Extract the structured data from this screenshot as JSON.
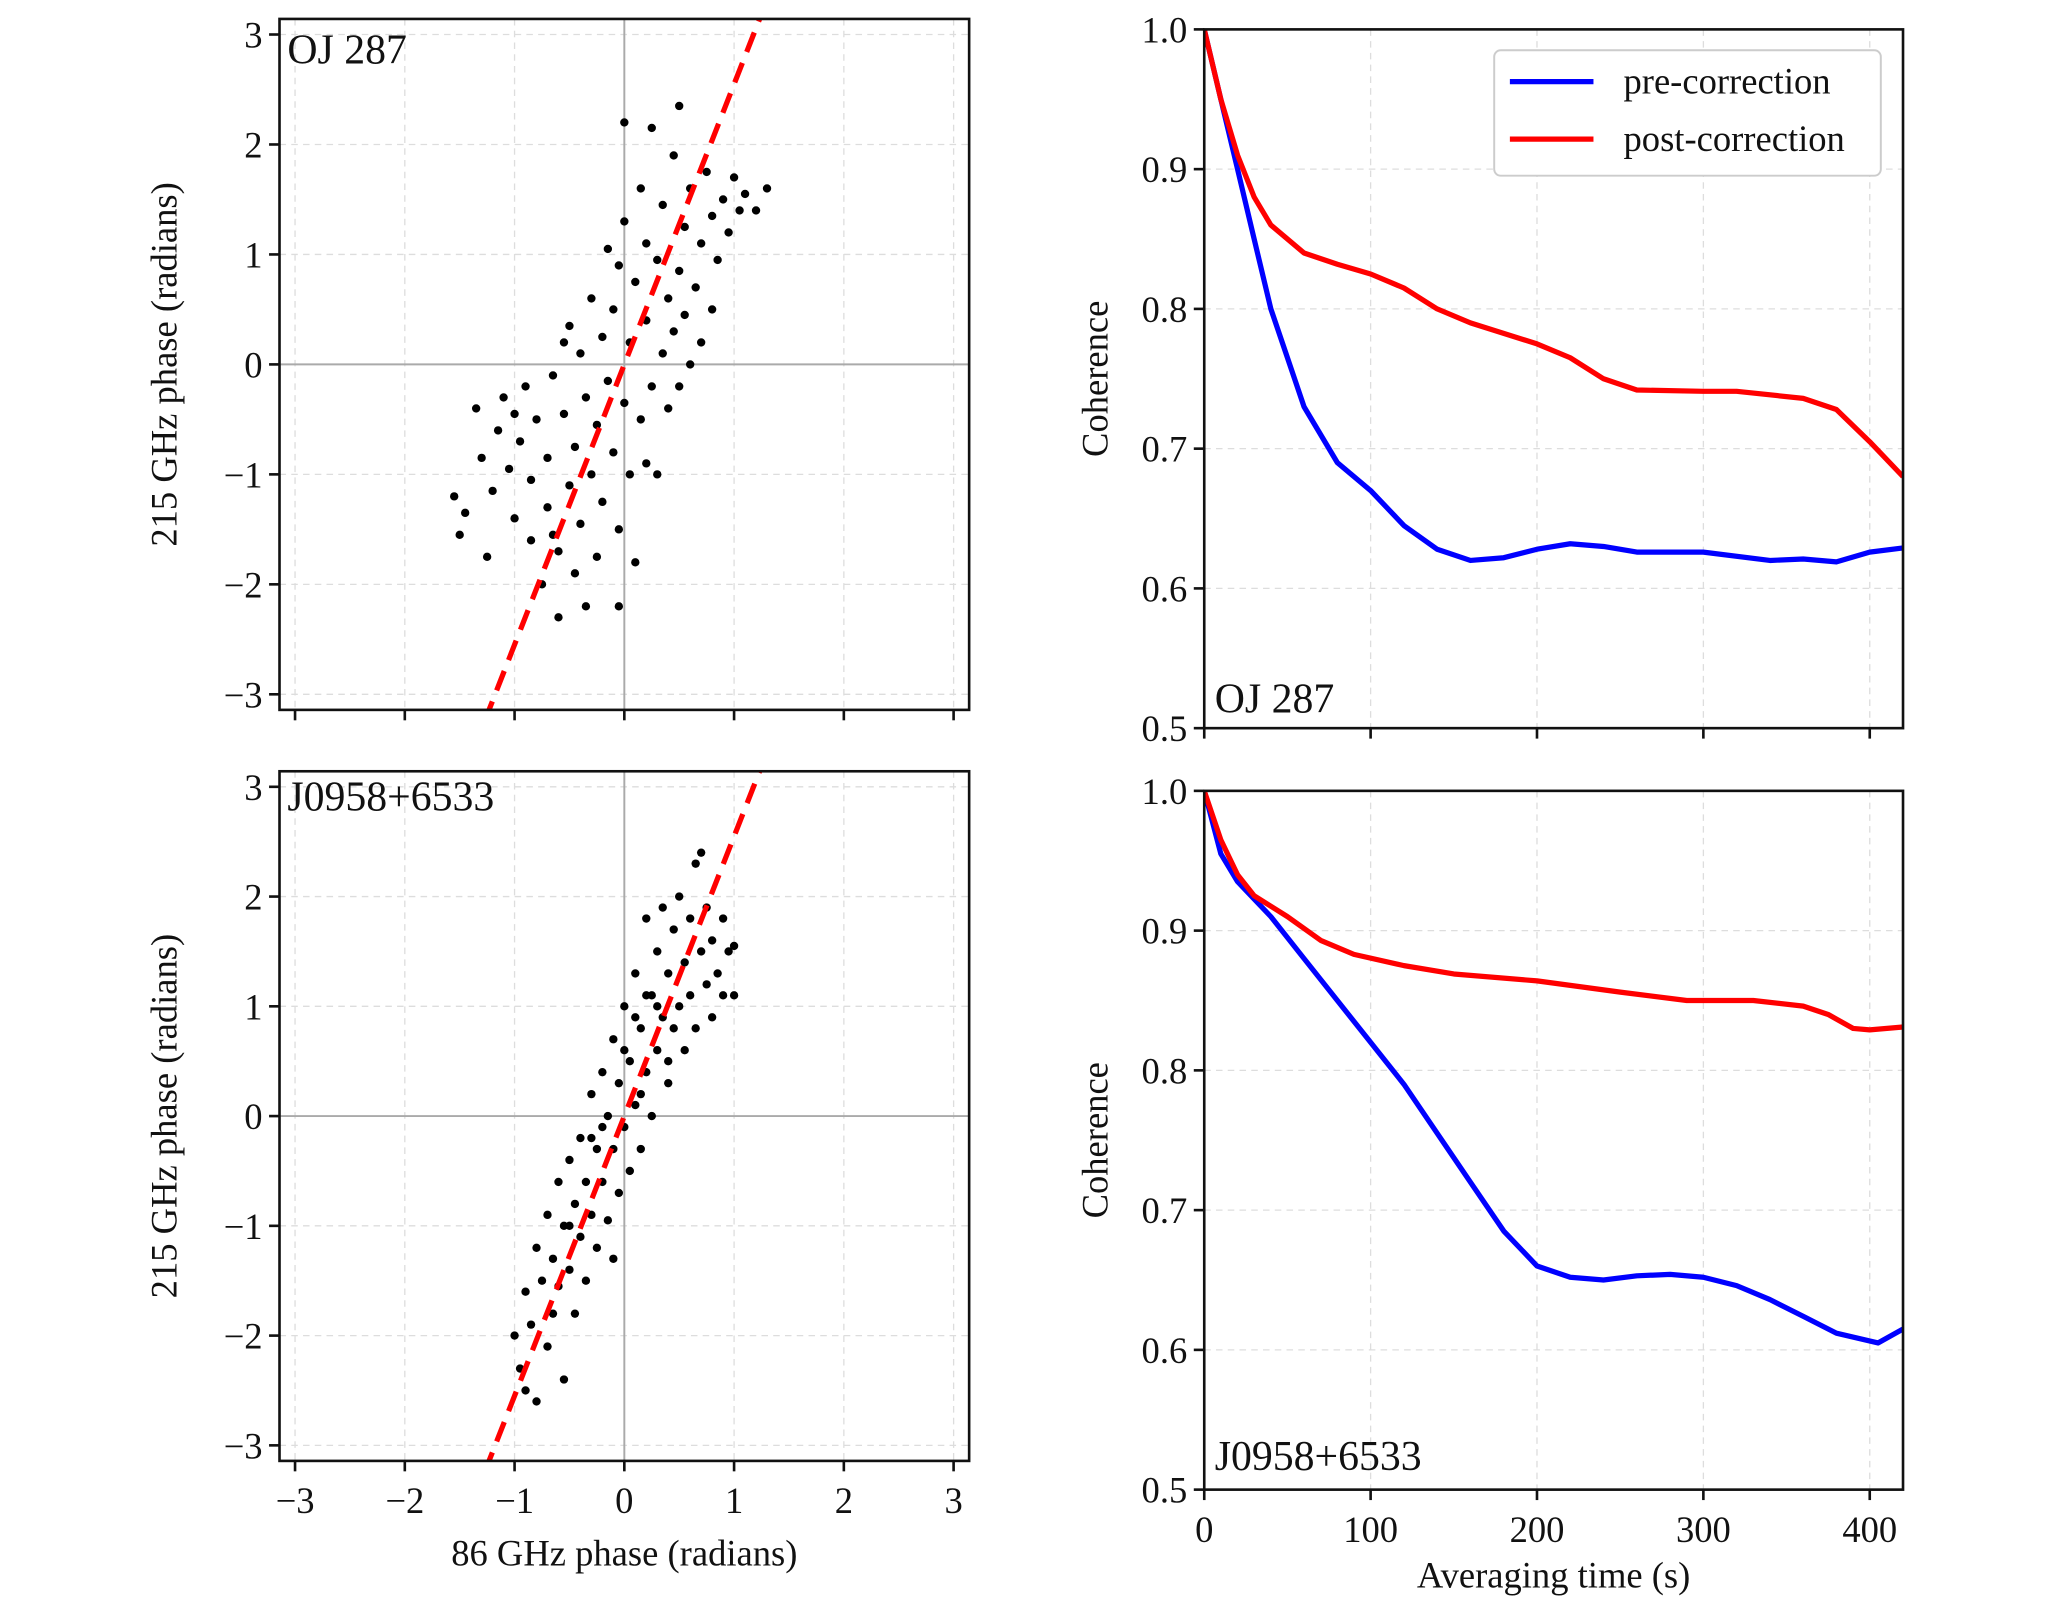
{
  "chart_data": [
    {
      "type": "scatter",
      "panel_label": "OJ 287",
      "xlabel": "",
      "ylabel": "215 GHz phase (radians)",
      "xlim": [
        -3.14159,
        3.14159
      ],
      "ylim": [
        -3.14159,
        3.14159
      ],
      "xticks": [
        -3,
        -2,
        -1,
        0,
        1,
        2,
        3
      ],
      "yticks": [
        -3,
        -2,
        -1,
        0,
        1,
        2,
        3
      ],
      "xtick_labels": [],
      "ytick_labels": [
        "−3",
        "−2",
        "−1",
        "0",
        "1",
        "2",
        "3"
      ],
      "grid": true,
      "fit_line": {
        "slope": 2.47,
        "intercept": 0.0,
        "color": "#ff0000",
        "style": "dashed"
      },
      "points_color": "#000000",
      "points": [
        [
          -1.55,
          -1.2
        ],
        [
          -1.5,
          -1.55
        ],
        [
          -1.45,
          -1.35
        ],
        [
          -1.35,
          -0.4
        ],
        [
          -1.3,
          -0.85
        ],
        [
          -1.25,
          -1.75
        ],
        [
          -1.2,
          -1.15
        ],
        [
          -1.15,
          -0.6
        ],
        [
          -1.1,
          -0.3
        ],
        [
          -1.05,
          -0.95
        ],
        [
          -1.0,
          -1.4
        ],
        [
          -0.95,
          -0.7
        ],
        [
          -0.9,
          -0.2
        ],
        [
          -0.85,
          -1.05
        ],
        [
          -0.85,
          -1.6
        ],
        [
          -0.8,
          -0.5
        ],
        [
          -0.75,
          -2.0
        ],
        [
          -0.7,
          -1.3
        ],
        [
          -0.7,
          -0.85
        ],
        [
          -0.65,
          -0.1
        ],
        [
          -0.6,
          -2.3
        ],
        [
          -0.6,
          -1.7
        ],
        [
          -0.55,
          -0.45
        ],
        [
          -0.5,
          -1.1
        ],
        [
          -0.5,
          0.35
        ],
        [
          -0.45,
          -1.9
        ],
        [
          -0.45,
          -0.75
        ],
        [
          -0.4,
          0.1
        ],
        [
          -0.4,
          -1.45
        ],
        [
          -0.35,
          -0.3
        ],
        [
          -0.35,
          -2.2
        ],
        [
          -0.3,
          0.6
        ],
        [
          -0.3,
          -1.0
        ],
        [
          -0.25,
          -0.55
        ],
        [
          -0.25,
          -1.75
        ],
        [
          -0.2,
          0.25
        ],
        [
          -0.2,
          -1.25
        ],
        [
          -0.15,
          1.05
        ],
        [
          -0.15,
          -0.15
        ],
        [
          -0.1,
          -0.8
        ],
        [
          -0.1,
          0.5
        ],
        [
          -0.05,
          -1.5
        ],
        [
          -0.05,
          0.9
        ],
        [
          0.0,
          -0.35
        ],
        [
          0.0,
          2.2
        ],
        [
          -0.05,
          -2.2
        ],
        [
          0.0,
          1.3
        ],
        [
          0.05,
          0.2
        ],
        [
          0.05,
          -1.0
        ],
        [
          0.1,
          0.75
        ],
        [
          0.1,
          -1.8
        ],
        [
          0.15,
          1.6
        ],
        [
          0.15,
          -0.5
        ],
        [
          0.2,
          0.4
        ],
        [
          0.2,
          1.1
        ],
        [
          0.25,
          -0.2
        ],
        [
          0.25,
          2.15
        ],
        [
          0.3,
          0.95
        ],
        [
          0.3,
          -1.0
        ],
        [
          0.35,
          0.1
        ],
        [
          0.35,
          1.45
        ],
        [
          0.4,
          0.6
        ],
        [
          0.4,
          -0.4
        ],
        [
          0.45,
          1.9
        ],
        [
          0.45,
          0.3
        ],
        [
          0.5,
          0.85
        ],
        [
          0.5,
          -0.2
        ],
        [
          0.55,
          1.25
        ],
        [
          0.55,
          0.45
        ],
        [
          0.6,
          0.0
        ],
        [
          0.6,
          1.6
        ],
        [
          0.65,
          0.7
        ],
        [
          0.7,
          1.1
        ],
        [
          0.7,
          0.2
        ],
        [
          0.75,
          1.75
        ],
        [
          0.8,
          0.5
        ],
        [
          0.8,
          1.35
        ],
        [
          0.85,
          0.95
        ],
        [
          0.9,
          1.5
        ],
        [
          0.95,
          1.2
        ],
        [
          1.0,
          1.7
        ],
        [
          1.05,
          1.4
        ],
        [
          1.1,
          1.55
        ],
        [
          1.2,
          1.4
        ],
        [
          1.3,
          1.6
        ],
        [
          0.5,
          2.35
        ],
        [
          0.2,
          -0.9
        ],
        [
          -0.65,
          -1.55
        ],
        [
          -1.0,
          -0.45
        ],
        [
          -0.55,
          0.2
        ]
      ]
    },
    {
      "type": "scatter",
      "panel_label": "J0958+6533",
      "xlabel": "86 GHz phase (radians)",
      "ylabel": "215 GHz phase (radians)",
      "xlim": [
        -3.14159,
        3.14159
      ],
      "ylim": [
        -3.14159,
        3.14159
      ],
      "xticks": [
        -3,
        -2,
        -1,
        0,
        1,
        2,
        3
      ],
      "yticks": [
        -3,
        -2,
        -1,
        0,
        1,
        2,
        3
      ],
      "xtick_labels": [
        "−3",
        "−2",
        "−1",
        "0",
        "1",
        "2",
        "3"
      ],
      "ytick_labels": [
        "−3",
        "−2",
        "−1",
        "0",
        "1",
        "2",
        "3"
      ],
      "grid": true,
      "fit_line": {
        "slope": 2.47,
        "intercept": 0.0,
        "color": "#ff0000",
        "style": "dashed"
      },
      "points_color": "#000000",
      "points": [
        [
          -1.0,
          -2.0
        ],
        [
          -0.95,
          -2.3
        ],
        [
          -0.9,
          -1.6
        ],
        [
          -0.9,
          -2.5
        ],
        [
          -0.85,
          -1.9
        ],
        [
          -0.8,
          -1.2
        ],
        [
          -0.8,
          -2.6
        ],
        [
          -0.75,
          -1.5
        ],
        [
          -0.7,
          -2.1
        ],
        [
          -0.7,
          -0.9
        ],
        [
          -0.65,
          -1.3
        ],
        [
          -0.65,
          -1.8
        ],
        [
          -0.6,
          -0.6
        ],
        [
          -0.6,
          -1.55
        ],
        [
          -0.55,
          -2.4
        ],
        [
          -0.55,
          -1.0
        ],
        [
          -0.5,
          -0.4
        ],
        [
          -0.5,
          -1.4
        ],
        [
          -0.45,
          -0.8
        ],
        [
          -0.45,
          -1.8
        ],
        [
          -0.4,
          -0.2
        ],
        [
          -0.4,
          -1.1
        ],
        [
          -0.35,
          -0.6
        ],
        [
          -0.35,
          -1.5
        ],
        [
          -0.3,
          0.2
        ],
        [
          -0.3,
          -0.9
        ],
        [
          -0.25,
          -0.3
        ],
        [
          -0.25,
          -1.2
        ],
        [
          -0.2,
          0.4
        ],
        [
          -0.2,
          -0.6
        ],
        [
          -0.15,
          0.0
        ],
        [
          -0.15,
          -0.95
        ],
        [
          -0.1,
          0.7
        ],
        [
          -0.1,
          -0.3
        ],
        [
          -0.05,
          0.3
        ],
        [
          -0.05,
          -0.7
        ],
        [
          0.0,
          1.0
        ],
        [
          0.0,
          -0.1
        ],
        [
          0.05,
          0.5
        ],
        [
          0.05,
          -0.5
        ],
        [
          0.1,
          1.3
        ],
        [
          0.1,
          0.1
        ],
        [
          0.15,
          0.8
        ],
        [
          0.15,
          -0.3
        ],
        [
          0.2,
          1.8
        ],
        [
          0.2,
          0.4
        ],
        [
          0.25,
          1.1
        ],
        [
          0.25,
          0.0
        ],
        [
          0.3,
          1.5
        ],
        [
          0.3,
          0.6
        ],
        [
          0.35,
          0.9
        ],
        [
          0.35,
          1.9
        ],
        [
          0.4,
          0.3
        ],
        [
          0.4,
          1.3
        ],
        [
          0.45,
          1.7
        ],
        [
          0.45,
          0.8
        ],
        [
          0.5,
          1.0
        ],
        [
          0.5,
          2.0
        ],
        [
          0.55,
          0.6
        ],
        [
          0.55,
          1.4
        ],
        [
          0.6,
          1.8
        ],
        [
          0.6,
          1.1
        ],
        [
          0.65,
          2.3
        ],
        [
          0.65,
          0.8
        ],
        [
          0.7,
          1.5
        ],
        [
          0.7,
          2.4
        ],
        [
          0.75,
          1.2
        ],
        [
          0.75,
          1.9
        ],
        [
          0.8,
          0.9
        ],
        [
          0.8,
          1.6
        ],
        [
          0.85,
          1.3
        ],
        [
          0.9,
          1.1
        ],
        [
          0.9,
          1.8
        ],
        [
          0.95,
          1.5
        ],
        [
          1.0,
          1.1
        ],
        [
          1.0,
          1.55
        ],
        [
          -0.1,
          -1.3
        ],
        [
          0.1,
          0.9
        ],
        [
          -0.3,
          -0.2
        ],
        [
          0.3,
          1.0
        ],
        [
          0.2,
          1.1
        ],
        [
          -0.2,
          -0.1
        ],
        [
          0.0,
          0.6
        ],
        [
          0.15,
          0.2
        ],
        [
          -0.5,
          -1.0
        ],
        [
          0.4,
          0.5
        ]
      ]
    },
    {
      "type": "line",
      "panel_label": "OJ 287",
      "xlabel": "",
      "ylabel": "Coherence",
      "xlim": [
        0,
        420
      ],
      "ylim": [
        0.5,
        1.0
      ],
      "xticks": [
        0,
        100,
        200,
        300,
        400
      ],
      "yticks": [
        0.5,
        0.6,
        0.7,
        0.8,
        0.9,
        1.0
      ],
      "xtick_labels": [],
      "ytick_labels": [
        "0.5",
        "0.6",
        "0.7",
        "0.8",
        "0.9",
        "1.0"
      ],
      "grid": true,
      "legend": {
        "placement": "top-right",
        "entries": [
          "pre-correction",
          "post-correction"
        ]
      },
      "series": [
        {
          "name": "pre-correction",
          "color": "#0000ff",
          "x": [
            0,
            10,
            20,
            30,
            40,
            50,
            60,
            80,
            100,
            120,
            140,
            160,
            180,
            200,
            220,
            240,
            260,
            300,
            340,
            360,
            380,
            400,
            420
          ],
          "y": [
            1.0,
            0.95,
            0.9,
            0.85,
            0.8,
            0.765,
            0.73,
            0.69,
            0.67,
            0.645,
            0.628,
            0.62,
            0.622,
            0.628,
            0.632,
            0.63,
            0.626,
            0.626,
            0.62,
            0.621,
            0.619,
            0.626,
            0.629
          ]
        },
        {
          "name": "post-correction",
          "color": "#ff0000",
          "x": [
            0,
            10,
            20,
            30,
            40,
            60,
            80,
            100,
            120,
            140,
            160,
            200,
            220,
            240,
            260,
            300,
            320,
            360,
            380,
            400,
            420
          ],
          "y": [
            1.0,
            0.95,
            0.91,
            0.88,
            0.86,
            0.84,
            0.832,
            0.825,
            0.815,
            0.8,
            0.79,
            0.775,
            0.765,
            0.75,
            0.742,
            0.741,
            0.741,
            0.736,
            0.728,
            0.705,
            0.68
          ]
        }
      ]
    },
    {
      "type": "line",
      "panel_label": "J0958+6533",
      "xlabel": "Averaging time (s)",
      "ylabel": "Coherence",
      "xlim": [
        0,
        420
      ],
      "ylim": [
        0.5,
        1.0
      ],
      "xticks": [
        0,
        100,
        200,
        300,
        400
      ],
      "yticks": [
        0.5,
        0.6,
        0.7,
        0.8,
        0.9,
        1.0
      ],
      "xtick_labels": [
        "0",
        "100",
        "200",
        "300",
        "400"
      ],
      "ytick_labels": [
        "0.5",
        "0.6",
        "0.7",
        "0.8",
        "0.9",
        "1.0"
      ],
      "grid": true,
      "series": [
        {
          "name": "pre-correction",
          "color": "#0000ff",
          "x": [
            0,
            10,
            20,
            40,
            60,
            80,
            100,
            120,
            140,
            160,
            180,
            200,
            220,
            240,
            260,
            280,
            300,
            320,
            340,
            360,
            380,
            405,
            420
          ],
          "y": [
            1.0,
            0.955,
            0.935,
            0.91,
            0.88,
            0.85,
            0.82,
            0.79,
            0.755,
            0.72,
            0.685,
            0.66,
            0.652,
            0.65,
            0.653,
            0.654,
            0.652,
            0.646,
            0.636,
            0.624,
            0.612,
            0.605,
            0.615
          ]
        },
        {
          "name": "post-correction",
          "color": "#ff0000",
          "x": [
            0,
            10,
            20,
            30,
            50,
            70,
            90,
            120,
            150,
            200,
            250,
            290,
            330,
            360,
            375,
            390,
            400,
            420
          ],
          "y": [
            1.0,
            0.965,
            0.94,
            0.925,
            0.91,
            0.893,
            0.883,
            0.875,
            0.869,
            0.864,
            0.856,
            0.85,
            0.85,
            0.846,
            0.84,
            0.83,
            0.829,
            0.831
          ]
        }
      ]
    }
  ]
}
